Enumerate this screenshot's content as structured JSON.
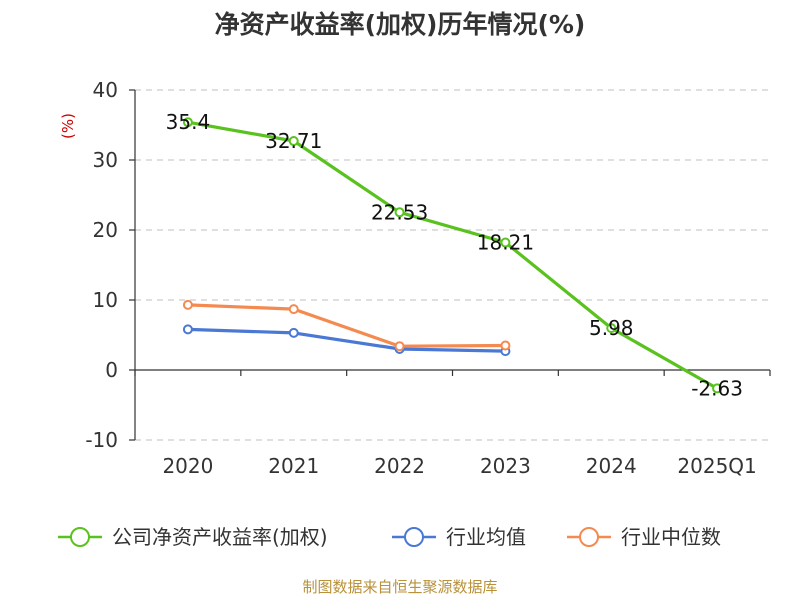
{
  "colors": {
    "main": "#5ac21e",
    "industry_avg": "#4a78d4",
    "industry_median": "#f58a50",
    "grid": "#cccccc",
    "axis": "#333333"
  },
  "chart_data": {
    "type": "line",
    "title": "净资产收益率(加权)历年情况(%)",
    "ylabel": "(%)",
    "xlabel": "",
    "categories": [
      "2020",
      "2021",
      "2022",
      "2023",
      "2024",
      "2025Q1"
    ],
    "ylim": [
      -10,
      40
    ],
    "yticks": [
      -10,
      0,
      10,
      20,
      30,
      40
    ],
    "grid": true,
    "legend_position": "bottom",
    "series": [
      {
        "name": "公司净资产收益率(加权)",
        "color": "#5ac21e",
        "show_labels": true,
        "values": [
          35.4,
          32.71,
          22.53,
          18.21,
          5.98,
          -2.63
        ],
        "labels": [
          "35.4",
          "32.71",
          "22.53",
          "18.21",
          "5.98",
          "-2.63"
        ]
      },
      {
        "name": "行业均值",
        "color": "#4a78d4",
        "show_labels": false,
        "values": [
          5.8,
          5.3,
          3.0,
          2.7,
          null,
          null
        ]
      },
      {
        "name": "行业中位数",
        "color": "#f58a50",
        "show_labels": false,
        "values": [
          9.3,
          8.7,
          3.4,
          3.5,
          null,
          null
        ]
      }
    ]
  },
  "source": "制图数据来自恒生聚源数据库"
}
